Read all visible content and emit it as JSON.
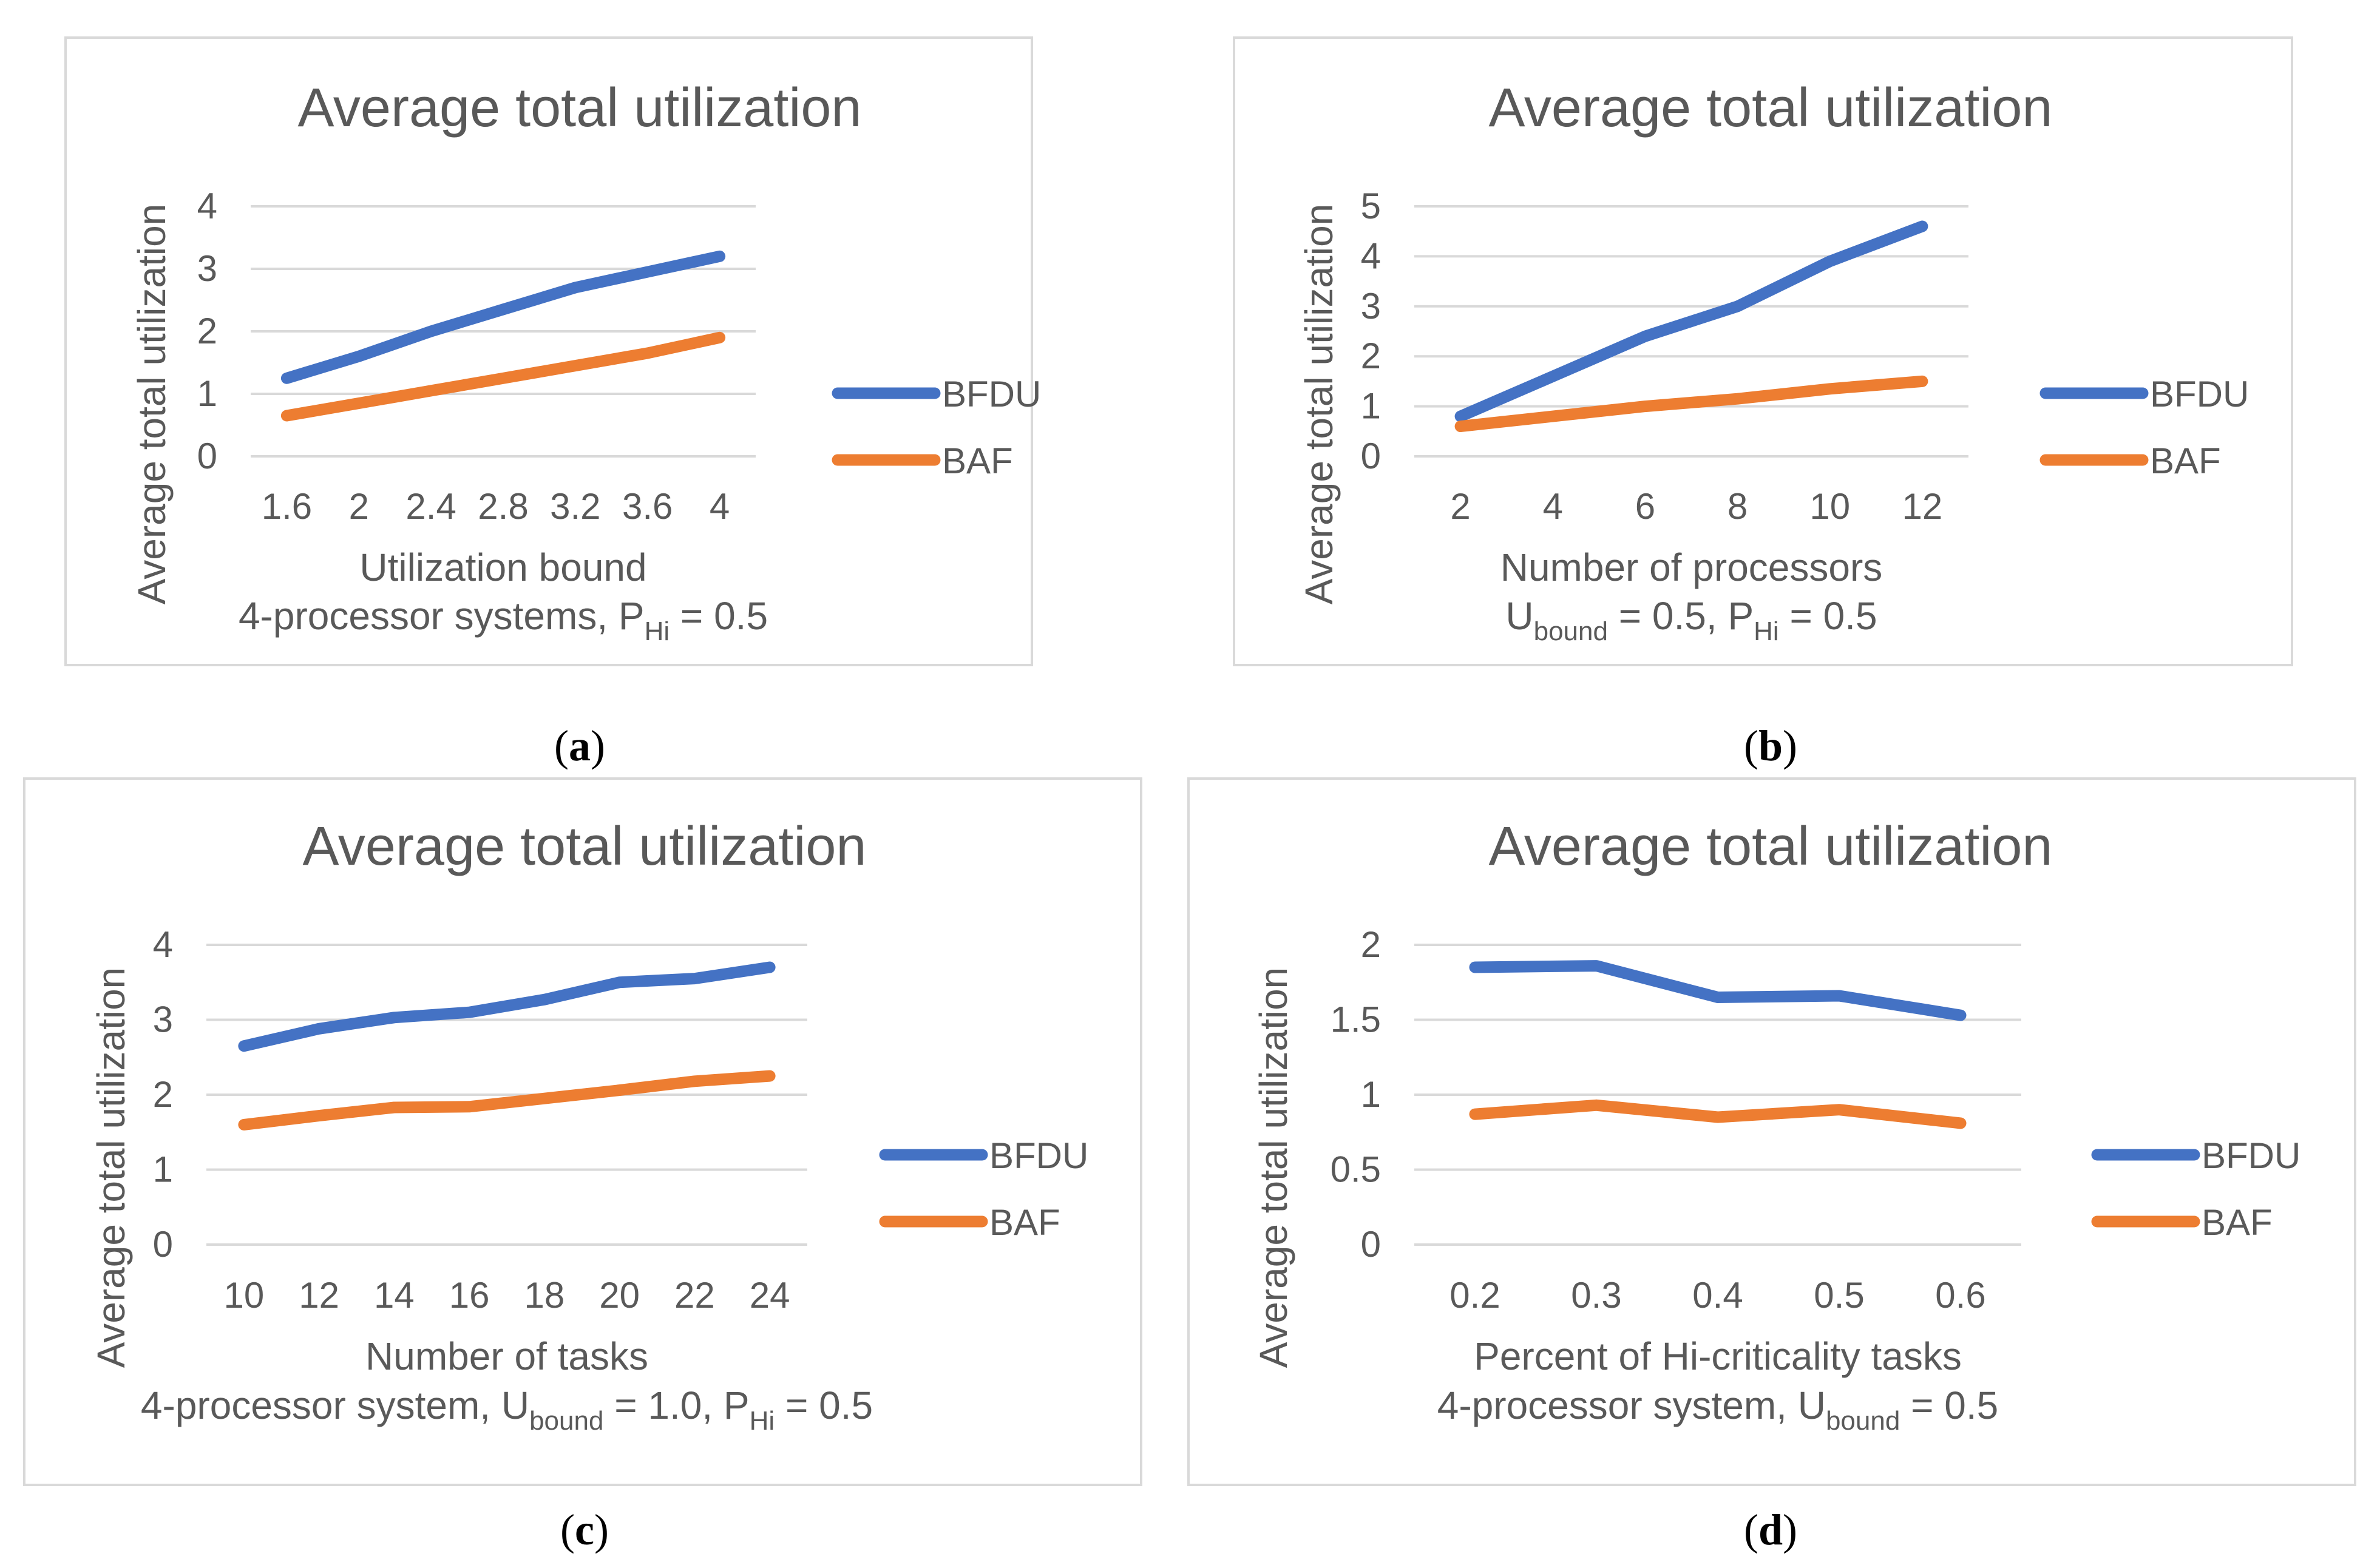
{
  "chart_data": [
    {
      "panel": "a",
      "caption": {
        "open": "(",
        "letter": "a",
        "close": ")"
      },
      "type": "line",
      "title": "Average total utilization",
      "xlabel": "Utilization bound",
      "ylabel": "Average total utilization",
      "subtitle": [
        {
          "text": "4-processor systems, P",
          "style": "normal"
        },
        {
          "text": "Hi",
          "style": "sub"
        },
        {
          "text": " = 0.5",
          "style": "normal"
        }
      ],
      "categories": [
        "1.6",
        "2",
        "2.4",
        "2.8",
        "3.2",
        "3.6",
        "4"
      ],
      "yticks": [
        "0",
        "1",
        "2",
        "3",
        "4"
      ],
      "ylim": [
        0,
        4
      ],
      "grid": true,
      "legend_position": "right",
      "series": [
        {
          "name": "BFDU",
          "color": "#4472C4",
          "values": [
            1.25,
            1.6,
            2.0,
            2.35,
            2.7,
            2.95,
            3.2
          ]
        },
        {
          "name": "BAF",
          "color": "#ED7D31",
          "values": [
            0.65,
            0.85,
            1.05,
            1.25,
            1.45,
            1.65,
            1.9
          ]
        }
      ]
    },
    {
      "panel": "b",
      "caption": {
        "open": "(",
        "letter": "b",
        "close": ")"
      },
      "type": "line",
      "title": "Average total utilization",
      "xlabel": "Number of processors",
      "ylabel": "Average total utilization",
      "subtitle": [
        {
          "text": "U",
          "style": "normal"
        },
        {
          "text": "bound",
          "style": "sub"
        },
        {
          "text": " = 0.5, P",
          "style": "normal"
        },
        {
          "text": "Hi",
          "style": "sub"
        },
        {
          "text": " = 0.5",
          "style": "normal"
        }
      ],
      "categories": [
        "2",
        "4",
        "6",
        "8",
        "10",
        "12"
      ],
      "yticks": [
        "0",
        "1",
        "2",
        "3",
        "4",
        "5"
      ],
      "ylim": [
        0,
        5
      ],
      "grid": true,
      "legend_position": "right",
      "series": [
        {
          "name": "BFDU",
          "color": "#4472C4",
          "values": [
            0.8,
            1.6,
            2.4,
            3.0,
            3.9,
            4.6
          ]
        },
        {
          "name": "BAF",
          "color": "#ED7D31",
          "values": [
            0.6,
            0.8,
            1.0,
            1.15,
            1.35,
            1.5
          ]
        }
      ]
    },
    {
      "panel": "c",
      "caption": {
        "open": "(",
        "letter": "c",
        "close": ")"
      },
      "type": "line",
      "title": "Average total utilization",
      "xlabel": "Number of tasks",
      "ylabel": "Average total utilization",
      "subtitle": [
        {
          "text": "4-processor system, U",
          "style": "normal"
        },
        {
          "text": "bound",
          "style": "sub"
        },
        {
          "text": " = 1.0, P",
          "style": "normal"
        },
        {
          "text": "Hi",
          "style": "sub"
        },
        {
          "text": " = 0.5",
          "style": "normal"
        }
      ],
      "categories": [
        "10",
        "12",
        "14",
        "16",
        "18",
        "20",
        "22",
        "24"
      ],
      "yticks": [
        "0",
        "1",
        "2",
        "3",
        "4"
      ],
      "ylim": [
        0,
        4
      ],
      "grid": true,
      "legend_position": "right",
      "series": [
        {
          "name": "BFDU",
          "color": "#4472C4",
          "values": [
            2.65,
            2.88,
            3.03,
            3.1,
            3.27,
            3.5,
            3.55,
            3.7
          ]
        },
        {
          "name": "BAF",
          "color": "#ED7D31",
          "values": [
            1.6,
            1.72,
            1.83,
            1.84,
            1.95,
            2.06,
            2.18,
            2.25
          ]
        }
      ]
    },
    {
      "panel": "d",
      "caption": {
        "open": "(",
        "letter": "d",
        "close": ")"
      },
      "type": "line",
      "title": "Average total utilization",
      "xlabel": "Percent of Hi-criticality tasks",
      "ylabel": "Average total utilization",
      "subtitle": [
        {
          "text": "4-processor system, U",
          "style": "normal"
        },
        {
          "text": "bound",
          "style": "sub"
        },
        {
          "text": " = 0.5",
          "style": "normal"
        }
      ],
      "categories": [
        "0.2",
        "0.3",
        "0.4",
        "0.5",
        "0.6"
      ],
      "yticks": [
        "0",
        "0.5",
        "1",
        "1.5",
        "2"
      ],
      "ylim": [
        0,
        2
      ],
      "grid": true,
      "legend_position": "right",
      "series": [
        {
          "name": "BFDU",
          "color": "#4472C4",
          "values": [
            1.85,
            1.86,
            1.65,
            1.66,
            1.53
          ]
        },
        {
          "name": "BAF",
          "color": "#ED7D31",
          "values": [
            0.87,
            0.93,
            0.85,
            0.9,
            0.81
          ]
        }
      ]
    }
  ]
}
